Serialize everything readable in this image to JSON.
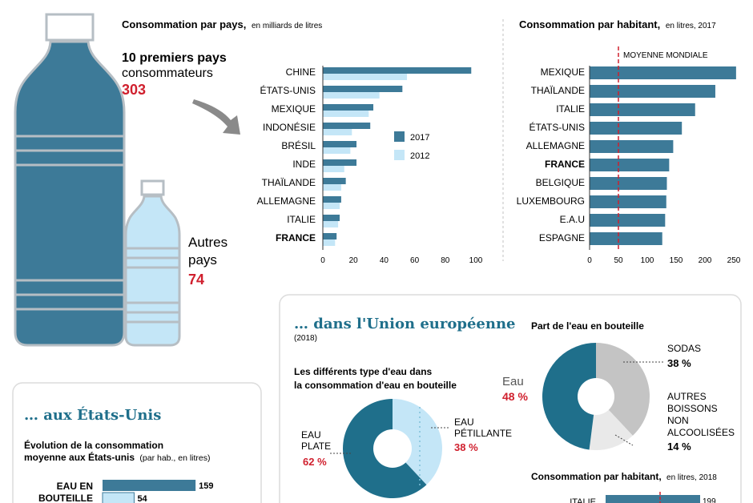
{
  "colors": {
    "dark_blue": "#3d7a98",
    "light_blue": "#c4e6f7",
    "teal": "#1f6f8b",
    "accent_red": "#d0202e",
    "gray": "#c4c4c4",
    "light_gray": "#e9e9e9"
  },
  "bottles": {
    "top_label_bold": "10 premiers pays",
    "top_label_light": "consommateurs",
    "top_value": "303",
    "other_label_line1": "Autres",
    "other_label_line2": "pays",
    "other_value": "74"
  },
  "chart_data": [
    {
      "type": "bar",
      "orientation": "horizontal",
      "title": "Consommation par pays,",
      "subtitle": "en milliards de litres",
      "categories": [
        "CHINE",
        "ÉTATS-UNIS",
        "MEXIQUE",
        "INDONÉSIE",
        "BRÉSIL",
        "INDE",
        "THAÏLANDE",
        "ALLEMAGNE",
        "ITALIE",
        "FRANCE"
      ],
      "highlight": "FRANCE",
      "series": [
        {
          "name": "2017",
          "values": [
            97,
            52,
            33,
            31,
            22,
            22,
            15,
            12,
            11,
            9
          ]
        },
        {
          "name": "2012",
          "values": [
            55,
            37,
            30,
            19,
            18,
            14,
            12,
            11,
            10,
            8
          ]
        }
      ],
      "xlim": [
        0,
        100
      ],
      "ticks": [
        0,
        20,
        40,
        60,
        80,
        100
      ],
      "legend": "right"
    },
    {
      "type": "bar",
      "orientation": "horizontal",
      "title": "Consommation par habitant,",
      "subtitle": "en litres, 2017",
      "categories": [
        "MEXIQUE",
        "THAÏLANDE",
        "ITALIE",
        "ÉTATS-UNIS",
        "ALLEMAGNE",
        "FRANCE",
        "BELGIQUE",
        "LUXEMBOURG",
        "E.A.U",
        "ESPAGNE"
      ],
      "highlight": "FRANCE",
      "values": [
        254,
        218,
        183,
        160,
        145,
        138,
        134,
        133,
        131,
        126
      ],
      "xlim": [
        0,
        250
      ],
      "ticks": [
        0,
        50,
        100,
        150,
        200,
        250
      ],
      "reference_line": {
        "value": 50,
        "label": "MOYENNE MONDIALE"
      }
    },
    {
      "type": "pie",
      "title": "Les différents type d'eau dans",
      "title_line2": "la consommation d'eau en bouteille",
      "slices": [
        {
          "label_line1": "EAU",
          "label_line2": "PÉTILLANTE",
          "value": 38,
          "value_text": "38 %",
          "color": "#c4e6f7"
        },
        {
          "label_line1": "EAU",
          "label_line2": "PLATE",
          "value": 62,
          "value_text": "62 %",
          "color": "#1f6f8b"
        }
      ]
    },
    {
      "type": "pie",
      "title": "Part de l'eau en bouteille",
      "slices": [
        {
          "label": "Eau",
          "value": 48,
          "value_text": "48 %",
          "color": "#1f6f8b"
        },
        {
          "label": "SODAS",
          "value": 38,
          "value_text": "38 %",
          "color": "#c4c4c4"
        },
        {
          "label_lines": [
            "AUTRES",
            "BOISSONS",
            "NON",
            "ALCOOLISÉES"
          ],
          "value": 14,
          "value_text": "14 %",
          "color": "#e9e9e9"
        }
      ]
    },
    {
      "type": "bar",
      "orientation": "horizontal",
      "title": "Évolution de la consommation",
      "title_line2": "moyenne aux États-unis",
      "subtitle": "(par hab., en litres)",
      "categories": [
        "EAU EN BOUTEILLE"
      ],
      "series": [
        {
          "values": [
            159
          ]
        },
        {
          "values": [
            54
          ]
        }
      ],
      "value_labels": [
        "159",
        "54"
      ],
      "xlim": [
        0,
        230
      ]
    },
    {
      "type": "bar",
      "orientation": "horizontal",
      "title": "Consommation par habitant,",
      "subtitle": "en litres, 2018",
      "categories": [
        "ITALIE"
      ],
      "values": [
        199
      ],
      "value_labels": [
        "199"
      ]
    }
  ],
  "sections": {
    "eu_title": "… dans l'Union européenne",
    "eu_year": "(2018)",
    "us_title": "… aux États-Unis",
    "us_category_line1": "EAU EN",
    "us_category_line2": "BOUTEILLE"
  }
}
